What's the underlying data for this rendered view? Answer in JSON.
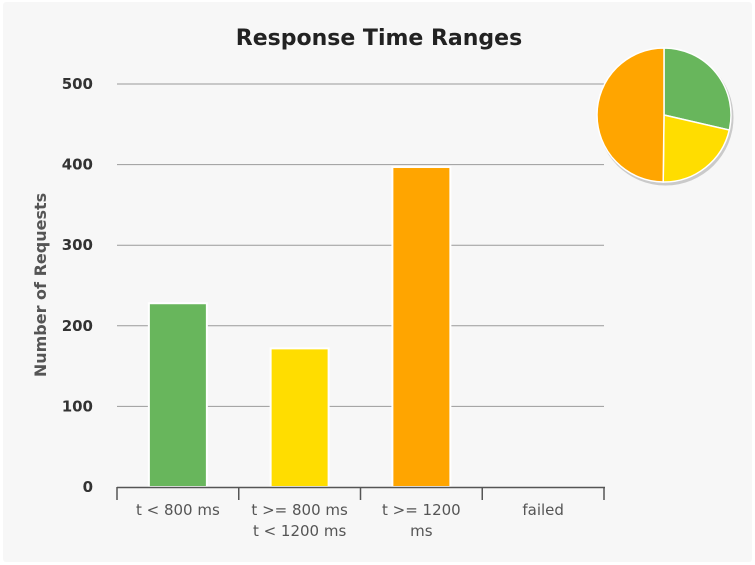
{
  "chart_data": {
    "type": "bar",
    "title": "Response Time Ranges",
    "ylabel": "Number of Requests",
    "xlabel": "",
    "ylim": [
      0,
      500
    ],
    "yticks": [
      0,
      100,
      200,
      300,
      400,
      500
    ],
    "grid": true,
    "categories": [
      [
        "t < 800 ms"
      ],
      [
        "t >= 800 ms",
        "t < 1200 ms"
      ],
      [
        "t >= 1200",
        "ms"
      ],
      [
        "failed"
      ]
    ],
    "values": [
      228,
      172,
      397,
      0
    ],
    "colors": [
      "#68b65c",
      "#ffdd00",
      "#ffa500",
      "#ff0000"
    ],
    "inset_pie": {
      "placement": "top-right",
      "values": [
        228,
        172,
        397,
        0
      ],
      "colors": [
        "#68b65c",
        "#ffdd00",
        "#ffa500",
        "#ff0000"
      ]
    }
  }
}
